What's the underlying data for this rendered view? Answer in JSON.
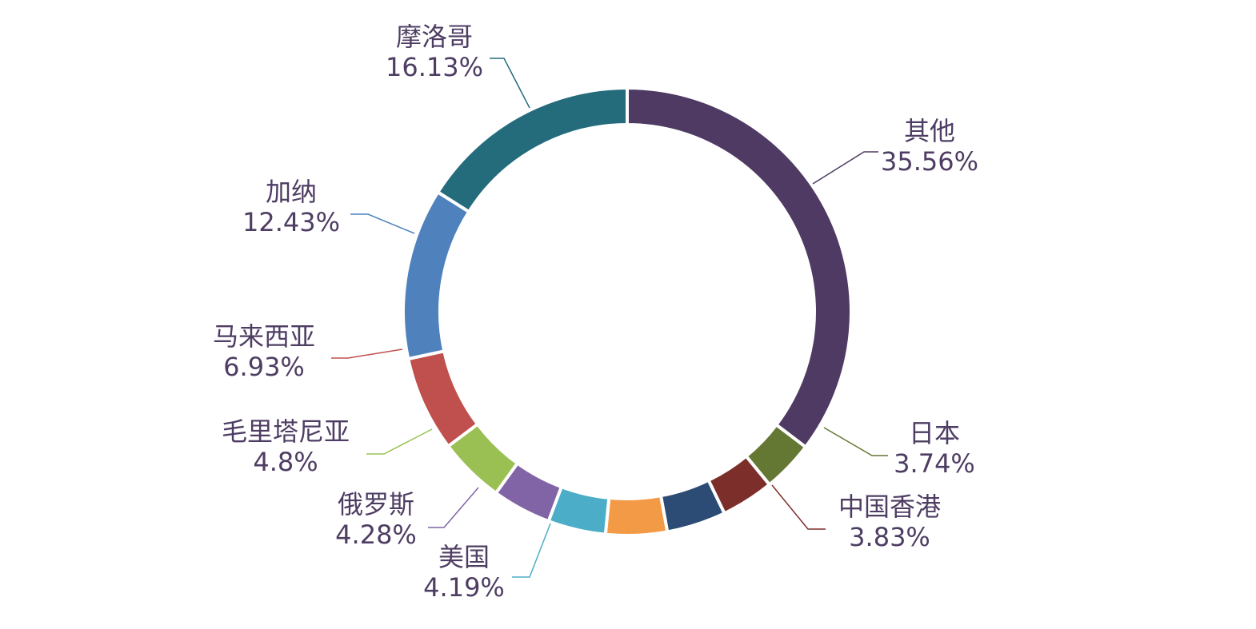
{
  "chart_data": {
    "type": "pie",
    "style": "donut",
    "start": "top, clockwise",
    "slices": [
      {
        "name": "其他",
        "value": 35.56,
        "label": "35.56%",
        "color": "#4e3a62"
      },
      {
        "name": "日本",
        "value": 3.74,
        "label": "3.74%",
        "color": "#647733"
      },
      {
        "name": "中国香港",
        "value": 3.83,
        "label": "3.83%",
        "color": "#7c2e2a"
      },
      {
        "name": "",
        "value": 4.3,
        "label": "",
        "color": "#2c4c75"
      },
      {
        "name": "",
        "value": 4.45,
        "label": "",
        "color": "#f39a46"
      },
      {
        "name": "美国",
        "value": 4.19,
        "label": "4.19%",
        "color": "#4badc7"
      },
      {
        "name": "俄罗斯",
        "value": 4.28,
        "label": "4.28%",
        "color": "#8064a6"
      },
      {
        "name": "毛里塔尼亚",
        "value": 4.8,
        "label": "4.8%",
        "color": "#9ac054"
      },
      {
        "name": "马来西亚",
        "value": 6.93,
        "label": "6.93%",
        "color": "#c0504d"
      },
      {
        "name": "加纳",
        "value": 12.43,
        "label": "12.43%",
        "color": "#4f81bd"
      },
      {
        "name": "摩洛哥",
        "value": 16.13,
        "label": "16.13%",
        "color": "#246b7c"
      }
    ]
  }
}
